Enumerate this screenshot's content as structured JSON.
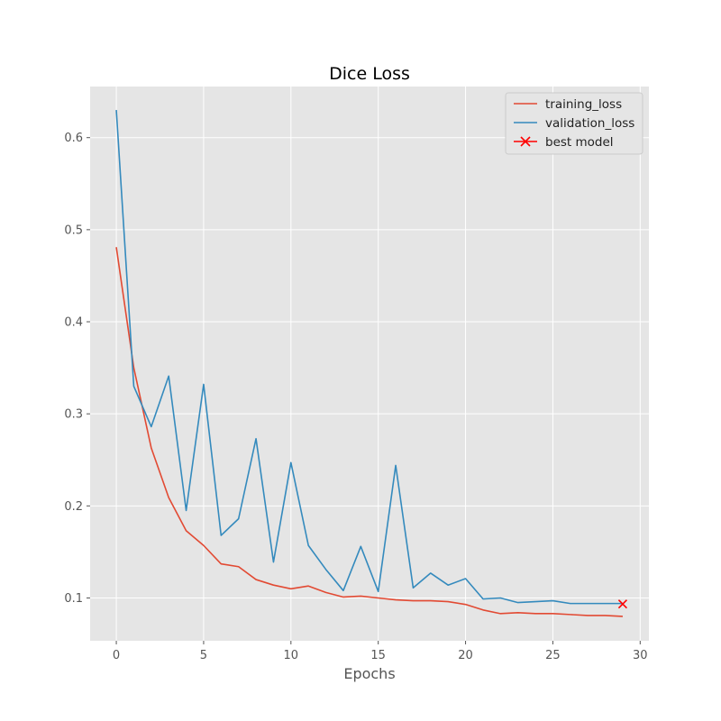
{
  "chart_data": {
    "type": "line",
    "title": "Dice Loss",
    "xlabel": "Epochs",
    "ylabel": "",
    "xlim": [
      -1.5,
      30.5
    ],
    "ylim": [
      0.0535,
      0.6555
    ],
    "xticks": [
      0,
      5,
      10,
      15,
      20,
      25,
      30
    ],
    "yticks": [
      0.1,
      0.2,
      0.3,
      0.4,
      0.5,
      0.6
    ],
    "ytick_labels": [
      "0.1",
      "0.2",
      "0.3",
      "0.4",
      "0.5",
      "0.6"
    ],
    "grid": true,
    "background": "#e5e5e5",
    "legend_position": "top-right",
    "series": [
      {
        "name": "training_loss",
        "color": "#e24a33",
        "x": [
          0,
          1,
          2,
          3,
          4,
          5,
          6,
          7,
          8,
          9,
          10,
          11,
          12,
          13,
          14,
          15,
          16,
          17,
          18,
          19,
          20,
          21,
          22,
          23,
          24,
          25,
          26,
          27,
          28,
          29
        ],
        "values": [
          0.481,
          0.35,
          0.263,
          0.209,
          0.173,
          0.157,
          0.137,
          0.134,
          0.12,
          0.114,
          0.11,
          0.113,
          0.106,
          0.101,
          0.102,
          0.1,
          0.098,
          0.097,
          0.097,
          0.096,
          0.093,
          0.087,
          0.083,
          0.084,
          0.083,
          0.083,
          0.082,
          0.081,
          0.081,
          0.08
        ]
      },
      {
        "name": "validation_loss",
        "color": "#348abd",
        "x": [
          0,
          1,
          2,
          3,
          4,
          5,
          6,
          7,
          8,
          9,
          10,
          11,
          12,
          13,
          14,
          15,
          16,
          17,
          18,
          19,
          20,
          21,
          22,
          23,
          24,
          25,
          26,
          27,
          28,
          29
        ],
        "values": [
          0.63,
          0.33,
          0.286,
          0.341,
          0.195,
          0.332,
          0.168,
          0.186,
          0.273,
          0.139,
          0.247,
          0.157,
          0.131,
          0.108,
          0.156,
          0.107,
          0.244,
          0.111,
          0.127,
          0.114,
          0.121,
          0.099,
          0.1,
          0.095,
          0.096,
          0.097,
          0.094,
          0.094,
          0.094,
          0.094
        ]
      }
    ],
    "markers": [
      {
        "name": "best model",
        "color": "#ff0000",
        "symbol": "x",
        "x": 29,
        "y": 0.0935
      }
    ]
  }
}
